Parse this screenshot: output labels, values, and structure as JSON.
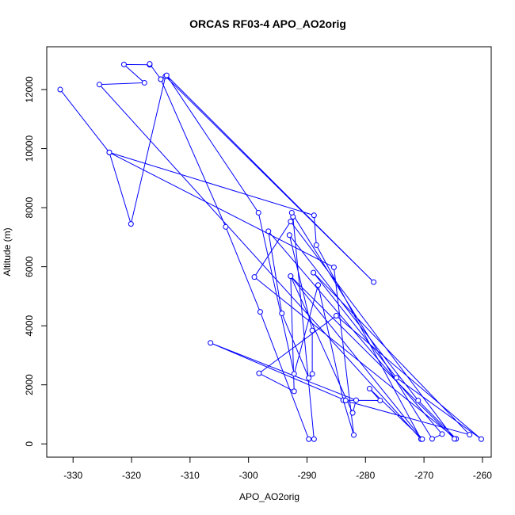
{
  "chart_data": {
    "type": "line",
    "title": "ORCAS RF03-4 APO_AO2orig",
    "xlabel": "APO_AO2orig",
    "ylabel": "Altitude (m)",
    "xlim": [
      -334.5,
      -258.5
    ],
    "ylim": [
      -450,
      13450
    ],
    "x_ticks": [
      -330,
      -320,
      -310,
      -300,
      -290,
      -280,
      -270,
      -260
    ],
    "y_ticks": [
      0,
      2000,
      4000,
      6000,
      8000,
      10000,
      12000
    ],
    "grid": false,
    "legend": "none",
    "series_color": "#0000ff",
    "marker": "open-circle",
    "points": [
      [
        -332.2,
        12000
      ],
      [
        -323.8,
        9870
      ],
      [
        -320.1,
        7450
      ],
      [
        -314.2,
        12450
      ],
      [
        -278.6,
        5480
      ],
      [
        -314.0,
        12480
      ],
      [
        -298.3,
        7830
      ],
      [
        -292.2,
        2370
      ],
      [
        -288.1,
        5380
      ],
      [
        -283.8,
        1480
      ],
      [
        -282.0,
        300
      ],
      [
        -285.4,
        5980
      ],
      [
        -323.8,
        9870
      ],
      [
        -288.8,
        7740
      ],
      [
        -288.4,
        6730
      ],
      [
        -270.5,
        160
      ],
      [
        -325.5,
        12170
      ],
      [
        -317.8,
        12230
      ],
      [
        -321.3,
        12850
      ],
      [
        -316.9,
        12840
      ],
      [
        -316.9,
        12870
      ],
      [
        -315.0,
        12350
      ],
      [
        -315.0,
        12350
      ],
      [
        -303.9,
        7350
      ],
      [
        -298.0,
        4470
      ],
      [
        -289.7,
        160
      ],
      [
        -288.8,
        160
      ],
      [
        -292.4,
        7690
      ],
      [
        -292.6,
        7830
      ],
      [
        -268.6,
        170
      ],
      [
        -266.9,
        330
      ],
      [
        -296.6,
        7200
      ],
      [
        -294.3,
        4420
      ],
      [
        -289.7,
        2230
      ],
      [
        -289.1,
        2370
      ],
      [
        -289.1,
        3840
      ],
      [
        -293.0,
        7070
      ],
      [
        -271.0,
        1470
      ],
      [
        -264.5,
        170
      ],
      [
        -299.0,
        5650
      ],
      [
        -292.8,
        7530
      ],
      [
        -264.8,
        170
      ],
      [
        -292.8,
        5680
      ],
      [
        -292.2,
        1780
      ],
      [
        -298.2,
        2390
      ],
      [
        -285.0,
        4340
      ],
      [
        -260.2,
        160
      ],
      [
        -274.7,
        2240
      ],
      [
        -288.9,
        5800
      ],
      [
        -262.2,
        310
      ],
      [
        -283.8,
        1480
      ],
      [
        -277.5,
        1470
      ],
      [
        -279.3,
        1870
      ],
      [
        -270.3,
        160
      ],
      [
        -292.8,
        5680
      ],
      [
        -282.2,
        1050
      ],
      [
        -281.6,
        1480
      ],
      [
        -306.5,
        3420
      ],
      [
        -283.4,
        1470
      ]
    ]
  }
}
